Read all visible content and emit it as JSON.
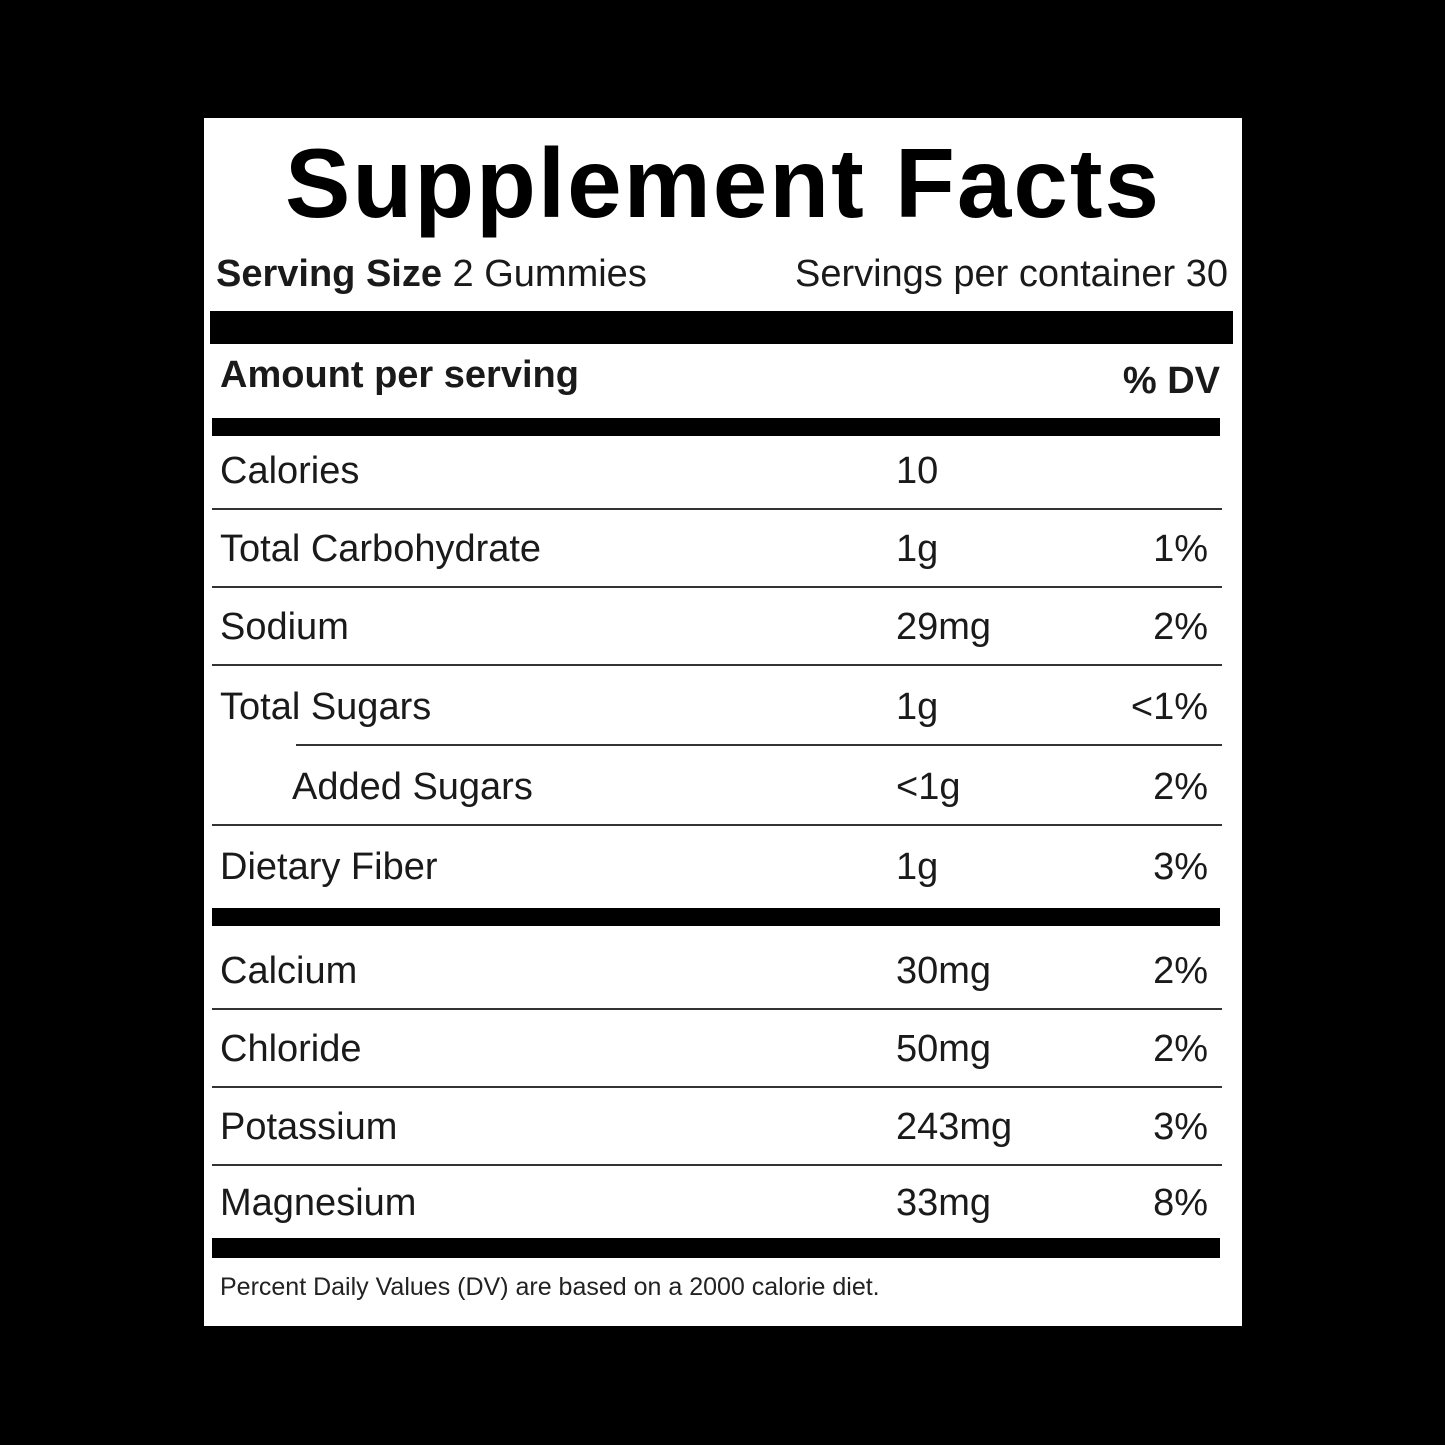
{
  "title": "Supplement Facts",
  "serving": {
    "size_label": "Serving Size",
    "size_value": "2 Gummies",
    "per_container": "Servings per container 30"
  },
  "header": {
    "amount_label": "Amount per serving",
    "dv_label": "% DV"
  },
  "rows": [
    {
      "name": "Calories",
      "amount": "10",
      "dv": ""
    },
    {
      "name": "Total Carbohydrate",
      "amount": "1g",
      "dv": "1%"
    },
    {
      "name": "Sodium",
      "amount": "29mg",
      "dv": "2%"
    },
    {
      "name": "Total Sugars",
      "amount": "1g",
      "dv": "<1%"
    },
    {
      "name": "Added Sugars",
      "amount": "<1g",
      "dv": "2%"
    },
    {
      "name": "Dietary Fiber",
      "amount": "1g",
      "dv": "3%"
    },
    {
      "name": "Calcium",
      "amount": "30mg",
      "dv": "2%"
    },
    {
      "name": "Chloride",
      "amount": "50mg",
      "dv": "2%"
    },
    {
      "name": "Potassium",
      "amount": "243mg",
      "dv": "3%"
    },
    {
      "name": "Magnesium",
      "amount": "33mg",
      "dv": "8%"
    }
  ],
  "footnote": "Percent Daily Values (DV) are based on a 2000 calorie diet."
}
